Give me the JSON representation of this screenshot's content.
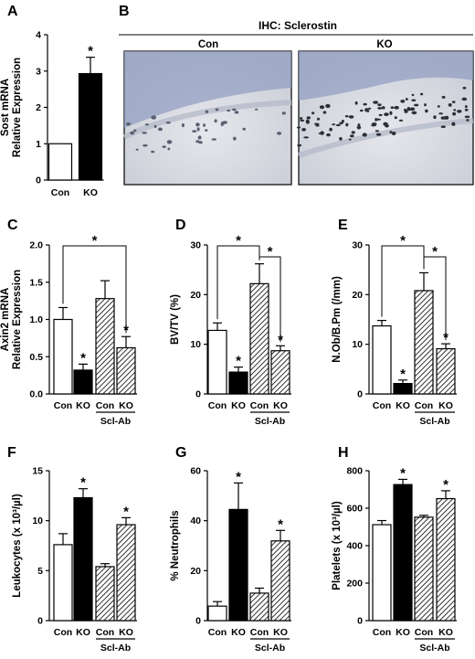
{
  "panels": {
    "A": "A",
    "B": "B",
    "C": "C",
    "D": "D",
    "E": "E",
    "F": "F",
    "G": "G",
    "H": "H"
  },
  "ihc": {
    "title": "IHC: Sclerostin",
    "con_label": "Con",
    "ko_label": "KO"
  },
  "chart_data": [
    {
      "id": "A",
      "type": "bar",
      "categories": [
        "Con",
        "KO"
      ],
      "values": [
        1.0,
        2.93
      ],
      "errors": [
        0,
        0.45
      ],
      "stars": [
        false,
        true
      ],
      "ylabel": [
        "Sost mRNA",
        "Relative Expression"
      ],
      "ylim": [
        0,
        4
      ],
      "yticks": [
        0,
        1,
        2,
        3,
        4
      ],
      "group_label": "",
      "brackets": []
    },
    {
      "id": "C",
      "type": "bar",
      "categories": [
        "Con",
        "KO",
        "Con",
        "KO"
      ],
      "values": [
        1.0,
        0.32,
        1.28,
        0.62
      ],
      "errors": [
        0.16,
        0.08,
        0.24,
        0.15
      ],
      "stars": [
        false,
        true,
        false,
        true
      ],
      "ylabel": [
        "Axin2 mRNA",
        "Relative Expression"
      ],
      "ylim": [
        0,
        2.0
      ],
      "yticks": [
        "0.0",
        "0.5",
        "1.0",
        "1.5",
        "2.0"
      ],
      "group_label": "Scl-Ab",
      "brackets": [
        {
          "from": 0,
          "to": 3,
          "level": 1
        }
      ]
    },
    {
      "id": "D",
      "type": "bar",
      "categories": [
        "Con",
        "KO",
        "Con",
        "KO"
      ],
      "values": [
        12.8,
        4.4,
        22.2,
        8.7
      ],
      "errors": [
        1.5,
        1.0,
        4.0,
        1.0
      ],
      "stars": [
        false,
        true,
        false,
        true
      ],
      "ylabel": [
        "BV/TV (%)"
      ],
      "ylim": [
        0,
        30
      ],
      "yticks": [
        0,
        10,
        20,
        30
      ],
      "group_label": "Scl-Ab",
      "brackets": [
        {
          "from": 0,
          "to": 2,
          "level": 1
        },
        {
          "from": 2,
          "to": 3,
          "level": 2
        }
      ]
    },
    {
      "id": "E",
      "type": "bar",
      "categories": [
        "Con",
        "KO",
        "Con",
        "KO"
      ],
      "values": [
        13.7,
        2.1,
        20.8,
        9.1
      ],
      "errors": [
        1.1,
        0.7,
        3.6,
        1.0
      ],
      "stars": [
        false,
        true,
        false,
        true
      ],
      "ylabel": [
        "N.Ob/B.Pm (/mm)"
      ],
      "ylim": [
        0,
        30
      ],
      "yticks": [
        0,
        10,
        20,
        30
      ],
      "group_label": "Scl-Ab",
      "brackets": [
        {
          "from": 0,
          "to": 2,
          "level": 1
        },
        {
          "from": 2,
          "to": 3,
          "level": 2
        }
      ]
    },
    {
      "id": "F",
      "type": "bar",
      "categories": [
        "Con",
        "KO",
        "Con",
        "KO"
      ],
      "values": [
        7.6,
        12.3,
        5.4,
        9.6
      ],
      "errors": [
        1.1,
        0.9,
        0.3,
        0.7
      ],
      "stars": [
        false,
        true,
        false,
        true
      ],
      "ylabel": [
        "Leukocytes (x 10³/µl)"
      ],
      "ylim": [
        0,
        15
      ],
      "yticks": [
        0,
        5,
        10,
        15
      ],
      "group_label": "Scl-Ab",
      "brackets": []
    },
    {
      "id": "G",
      "type": "bar",
      "categories": [
        "Con",
        "KO",
        "Con",
        "KO"
      ],
      "values": [
        5.8,
        44.5,
        11.0,
        31.9
      ],
      "errors": [
        1.8,
        10.6,
        2.0,
        4.2
      ],
      "stars": [
        false,
        true,
        false,
        true
      ],
      "ylabel": [
        "% Neutrophils"
      ],
      "ylim": [
        0,
        60
      ],
      "yticks": [
        0,
        20,
        40,
        60
      ],
      "group_label": "Scl-Ab",
      "brackets": []
    },
    {
      "id": "H",
      "type": "bar",
      "categories": [
        "Con",
        "KO",
        "Con",
        "KO"
      ],
      "values": [
        512,
        726,
        552,
        651
      ],
      "errors": [
        22,
        28,
        10,
        42
      ],
      "stars": [
        false,
        true,
        false,
        true
      ],
      "ylabel": [
        "Platelets (x 10³/µl)"
      ],
      "ylim": [
        0,
        800
      ],
      "yticks": [
        0,
        200,
        400,
        600,
        800
      ],
      "group_label": "Scl-Ab",
      "brackets": []
    }
  ],
  "colors": {
    "fill_con": "#ffffff",
    "fill_ko": "#000000",
    "hatch": "#000000",
    "ihc_background": "#d9dce6",
    "ihc_cells": "#6a7aa8"
  }
}
